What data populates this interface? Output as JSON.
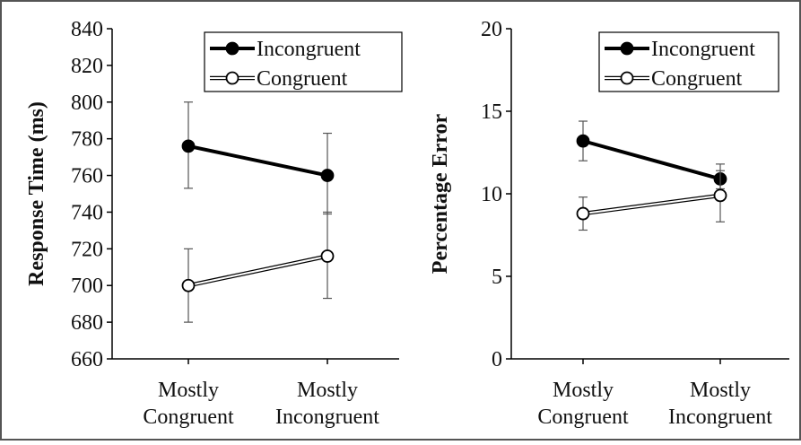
{
  "chart_data": [
    {
      "type": "line",
      "ylabel": "Response Time (ms)",
      "xlabel": "",
      "categories": [
        [
          "Mostly",
          "Congruent"
        ],
        [
          "Mostly",
          "Incongruent"
        ]
      ],
      "ylim": [
        660,
        840
      ],
      "yticks": [
        "660",
        "680",
        "700",
        "720",
        "740",
        "760",
        "780",
        "800",
        "820",
        "840"
      ],
      "yticks_values": [
        660,
        680,
        700,
        720,
        740,
        760,
        780,
        800,
        820,
        840
      ],
      "legend_position": "top-right",
      "series": [
        {
          "name": "Incongruent",
          "marker": "filled-circle",
          "color": "#000000",
          "values": [
            776,
            760
          ],
          "error": [
            [
              753,
              800
            ],
            [
              739,
              783
            ]
          ]
        },
        {
          "name": "Congruent",
          "marker": "open-circle",
          "color": "#000000",
          "values": [
            700,
            716
          ],
          "error": [
            [
              680,
              720
            ],
            [
              693,
              740
            ]
          ]
        }
      ]
    },
    {
      "type": "line",
      "ylabel": "Percentage Error",
      "xlabel": "",
      "categories": [
        [
          "Mostly",
          "Congruent"
        ],
        [
          "Mostly",
          "Incongruent"
        ]
      ],
      "ylim": [
        0,
        20
      ],
      "yticks": [
        "0",
        "5",
        "10",
        "15",
        "20"
      ],
      "yticks_values": [
        0,
        5,
        10,
        15,
        20
      ],
      "legend_position": "top-right",
      "series": [
        {
          "name": "Incongruent",
          "marker": "filled-circle",
          "color": "#000000",
          "values": [
            13.2,
            10.9
          ],
          "error": [
            [
              12.0,
              14.4
            ],
            [
              10.3,
              11.8
            ]
          ]
        },
        {
          "name": "Congruent",
          "marker": "open-circle",
          "color": "#000000",
          "values": [
            8.8,
            9.9
          ],
          "error": [
            [
              7.8,
              9.8
            ],
            [
              8.3,
              11.4
            ]
          ]
        }
      ]
    }
  ]
}
